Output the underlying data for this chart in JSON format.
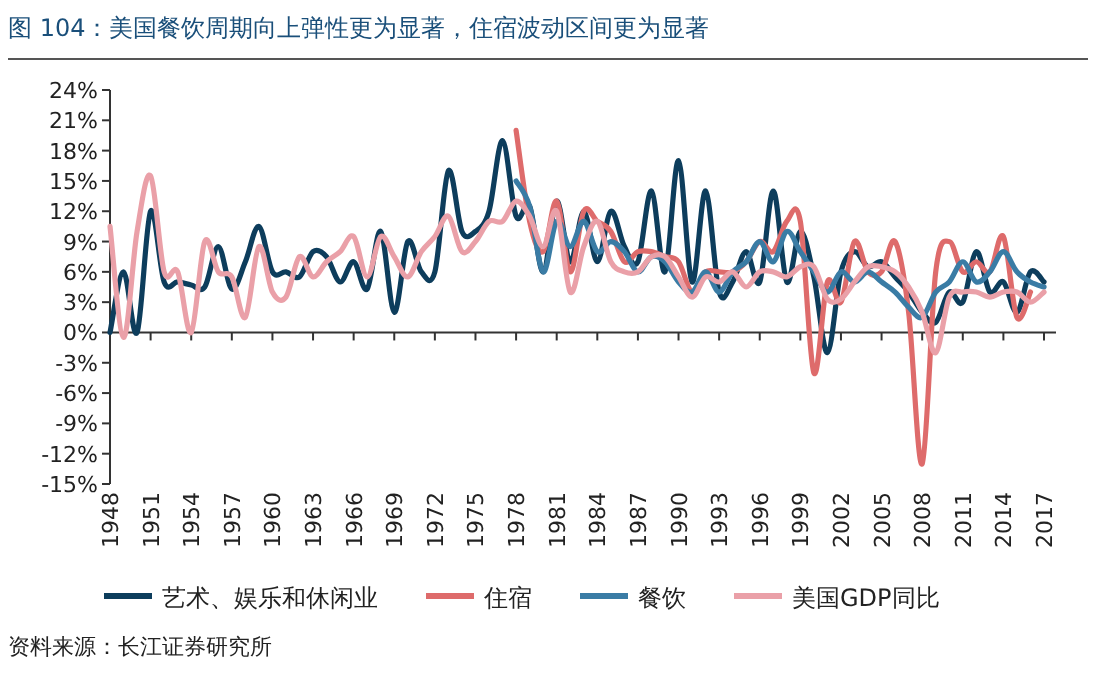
{
  "chart_data": {
    "type": "line",
    "title": "图 104：美国餐饮周期向上弹性更为显著，住宿波动区间更为显著",
    "annotations": [
      "资料来源：长江证券研究所"
    ],
    "xlim": [
      1948,
      2017
    ],
    "xticks": [
      1948,
      1951,
      1954,
      1957,
      1960,
      1963,
      1966,
      1969,
      1972,
      1975,
      1978,
      1981,
      1984,
      1987,
      1990,
      1993,
      1996,
      1999,
      2002,
      2005,
      2008,
      2011,
      2014,
      2017
    ],
    "ylim": [
      -15,
      24
    ],
    "yticks": [
      {
        "value": 24,
        "label": "24%"
      },
      {
        "value": 21,
        "label": "21%"
      },
      {
        "value": 18,
        "label": "18%"
      },
      {
        "value": 15,
        "label": "15%"
      },
      {
        "value": 12,
        "label": "12%"
      },
      {
        "value": 9,
        "label": "9%"
      },
      {
        "value": 6,
        "label": "6%"
      },
      {
        "value": 3,
        "label": "3%"
      },
      {
        "value": 0,
        "label": "0%"
      },
      {
        "value": -3,
        "label": "-3%"
      },
      {
        "value": -6,
        "label": "-6%"
      },
      {
        "value": -9,
        "label": "-9%"
      },
      {
        "value": -12,
        "label": "-12%"
      },
      {
        "value": -15,
        "label": "-15%"
      }
    ],
    "legend": "bottom",
    "marker": "none",
    "line_style": "solid",
    "series": [
      {
        "name": "艺术、娱乐和休闲业",
        "color": "#0d3d5c",
        "x": [
          1948,
          1949,
          1950,
          1951,
          1952,
          1953,
          1954,
          1955,
          1956,
          1957,
          1958,
          1959,
          1960,
          1961,
          1962,
          1963,
          1964,
          1965,
          1966,
          1967,
          1968,
          1969,
          1970,
          1971,
          1972,
          1973,
          1974,
          1975,
          1976,
          1977,
          1978,
          1979,
          1980,
          1981,
          1982,
          1983,
          1984,
          1985,
          1986,
          1987,
          1988,
          1989,
          1990,
          1991,
          1992,
          1993,
          1994,
          1995,
          1996,
          1997,
          1998,
          1999,
          2000,
          2001,
          2002,
          2003,
          2004,
          2005,
          2006,
          2007,
          2008,
          2009,
          2010,
          2011,
          2012,
          2013,
          2014,
          2015,
          2016,
          2017
        ],
        "values": [
          0,
          6,
          0,
          12,
          5,
          5,
          4.7,
          4.5,
          8.5,
          4.3,
          7,
          10.5,
          6,
          6,
          5.5,
          8,
          7.5,
          5,
          7,
          4.3,
          10,
          2,
          9,
          6,
          6,
          16,
          10,
          10,
          12,
          19,
          11.5,
          12.5,
          6,
          13,
          7,
          12,
          7,
          12,
          8.5,
          7,
          14,
          6,
          17,
          5,
          14,
          4,
          5,
          8,
          5,
          14,
          5,
          10,
          5.5,
          -2,
          6,
          8,
          6.5,
          7,
          5.5,
          4,
          2,
          1,
          4,
          3,
          8,
          4,
          5,
          2,
          6,
          5
        ]
      },
      {
        "name": "住宿",
        "color": "#de6b6b",
        "x": [
          1978,
          1979,
          1980,
          1981,
          1982,
          1983,
          1984,
          1985,
          1986,
          1987,
          1988,
          1989,
          1990,
          1991,
          1992,
          1993,
          1994,
          1995,
          1996,
          1997,
          1998,
          1999,
          2000,
          2001,
          2002,
          2003,
          2004,
          2005,
          2006,
          2007,
          2008,
          2009,
          2010,
          2011,
          2012,
          2013,
          2014,
          2015,
          2016
        ],
        "values": [
          20,
          11,
          8,
          13,
          6,
          12,
          11,
          10,
          7,
          8,
          8,
          7.5,
          7,
          4,
          6,
          6,
          6,
          7,
          9,
          8,
          11,
          11,
          -4,
          5,
          3,
          9,
          6,
          6,
          9,
          2,
          -13,
          6,
          9,
          6,
          7,
          6,
          9.5,
          1.5,
          4
        ]
      },
      {
        "name": "餐饮",
        "color": "#3a7ca5",
        "x": [
          1978,
          1979,
          1980,
          1981,
          1982,
          1983,
          1984,
          1985,
          1986,
          1987,
          1988,
          1989,
          1990,
          1991,
          1992,
          1993,
          1994,
          1995,
          1996,
          1997,
          1998,
          1999,
          2000,
          2001,
          2002,
          2003,
          2004,
          2005,
          2006,
          2007,
          2008,
          2009,
          2010,
          2011,
          2012,
          2013,
          2014,
          2015,
          2016,
          2017
        ],
        "values": [
          15,
          12.5,
          6,
          11,
          8.5,
          11,
          8,
          9,
          8,
          6,
          7.5,
          7,
          5,
          4,
          6,
          4,
          6,
          7,
          9,
          7,
          10,
          8,
          6,
          4,
          6,
          5,
          6,
          5,
          4,
          2.5,
          1.5,
          4,
          5,
          7,
          5,
          6,
          8,
          6,
          5,
          4.5
        ]
      },
      {
        "name": "美国GDP同比",
        "color": "#eaa0a8",
        "x": [
          1948,
          1949,
          1950,
          1951,
          1952,
          1953,
          1954,
          1955,
          1956,
          1957,
          1958,
          1959,
          1960,
          1961,
          1962,
          1963,
          1964,
          1965,
          1966,
          1967,
          1968,
          1969,
          1970,
          1971,
          1972,
          1973,
          1974,
          1975,
          1976,
          1977,
          1978,
          1979,
          1980,
          1981,
          1982,
          1983,
          1984,
          1985,
          1986,
          1987,
          1988,
          1989,
          1990,
          1991,
          1992,
          1993,
          1994,
          1995,
          1996,
          1997,
          1998,
          1999,
          2000,
          2001,
          2002,
          2003,
          2004,
          2005,
          2006,
          2007,
          2008,
          2009,
          2010,
          2011,
          2012,
          2013,
          2014,
          2015,
          2016,
          2017
        ],
        "values": [
          10.5,
          -0.5,
          10,
          15.5,
          6,
          6,
          0,
          9,
          6,
          5.5,
          1.5,
          8.5,
          4,
          3.5,
          7.5,
          5.5,
          7,
          8,
          9.5,
          5.5,
          9.5,
          7.5,
          5.5,
          8,
          9.5,
          11.5,
          8,
          9,
          11,
          11,
          13,
          11.5,
          8.5,
          12,
          4,
          8.5,
          11,
          7,
          6,
          6,
          7.5,
          7.5,
          5.5,
          3.5,
          5.5,
          5,
          6,
          4.5,
          6,
          6,
          5.5,
          6.5,
          6.5,
          3.3,
          3.3,
          5,
          6.5,
          6.5,
          6,
          4.5,
          2,
          -2,
          3.5,
          4,
          4,
          3.5,
          4,
          4,
          3,
          4
        ]
      }
    ]
  }
}
